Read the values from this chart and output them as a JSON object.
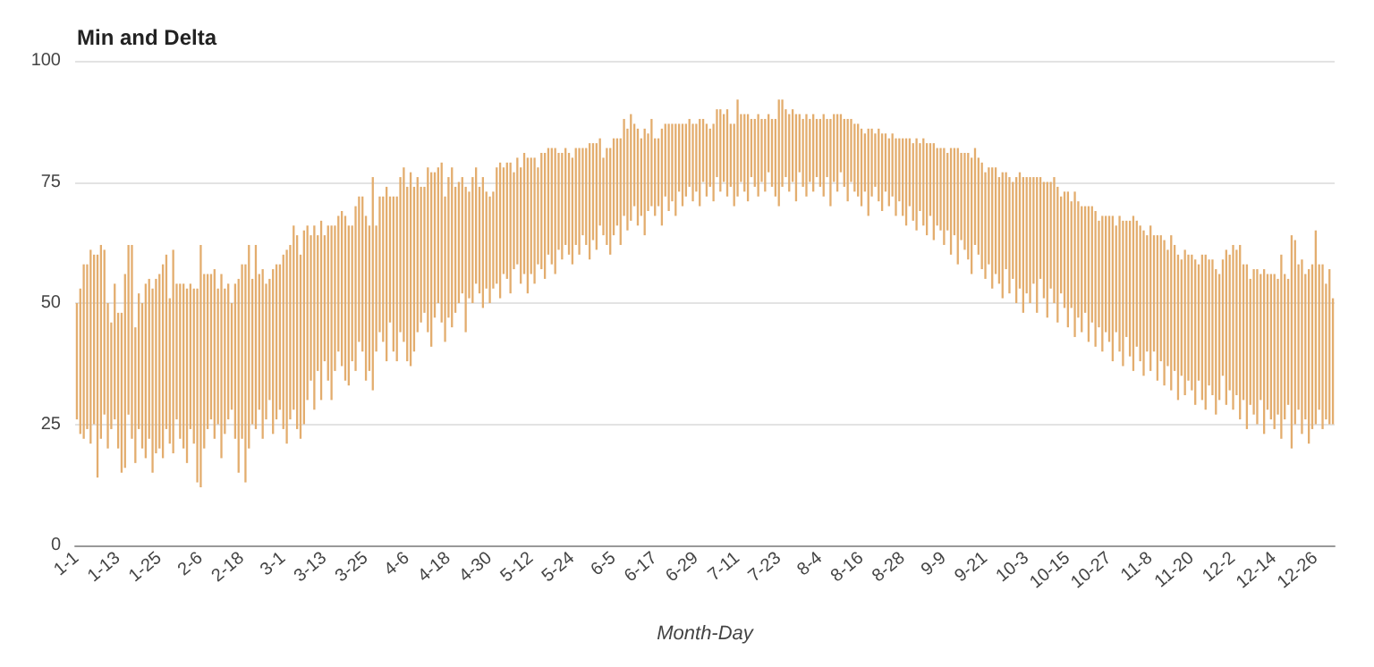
{
  "chart_data": {
    "type": "bar",
    "title": "Min and Delta",
    "xlabel": "Month-Day",
    "color": "#e3ad6e",
    "ylim": [
      0,
      100
    ],
    "yticks": [
      0,
      25,
      50,
      75,
      100
    ],
    "grid": "y",
    "categories": [
      "1-1",
      null,
      null,
      null,
      null,
      null,
      null,
      null,
      null,
      null,
      null,
      null,
      "1-13",
      null,
      null,
      null,
      null,
      null,
      null,
      null,
      null,
      null,
      null,
      null,
      "1-25",
      null,
      null,
      null,
      null,
      null,
      null,
      null,
      null,
      null,
      null,
      null,
      "2-6",
      null,
      null,
      null,
      null,
      null,
      null,
      null,
      null,
      null,
      null,
      null,
      "2-18",
      null,
      null,
      null,
      null,
      null,
      null,
      null,
      null,
      null,
      null,
      null,
      "3-1",
      null,
      null,
      null,
      null,
      null,
      null,
      null,
      null,
      null,
      null,
      null,
      "3-13",
      null,
      null,
      null,
      null,
      null,
      null,
      null,
      null,
      null,
      null,
      null,
      "3-25",
      null,
      null,
      null,
      null,
      null,
      null,
      null,
      null,
      null,
      null,
      null,
      "4-6",
      null,
      null,
      null,
      null,
      null,
      null,
      null,
      null,
      null,
      null,
      null,
      "4-18",
      null,
      null,
      null,
      null,
      null,
      null,
      null,
      null,
      null,
      null,
      null,
      "4-30",
      null,
      null,
      null,
      null,
      null,
      null,
      null,
      null,
      null,
      null,
      null,
      "5-12",
      null,
      null,
      null,
      null,
      null,
      null,
      null,
      null,
      null,
      null,
      null,
      "5-24",
      null,
      null,
      null,
      null,
      null,
      null,
      null,
      null,
      null,
      null,
      null,
      "6-5",
      null,
      null,
      null,
      null,
      null,
      null,
      null,
      null,
      null,
      null,
      null,
      "6-17",
      null,
      null,
      null,
      null,
      null,
      null,
      null,
      null,
      null,
      null,
      null,
      "6-29",
      null,
      null,
      null,
      null,
      null,
      null,
      null,
      null,
      null,
      null,
      null,
      "7-11",
      null,
      null,
      null,
      null,
      null,
      null,
      null,
      null,
      null,
      null,
      null,
      "7-23",
      null,
      null,
      null,
      null,
      null,
      null,
      null,
      null,
      null,
      null,
      null,
      "8-4",
      null,
      null,
      null,
      null,
      null,
      null,
      null,
      null,
      null,
      null,
      null,
      "8-16",
      null,
      null,
      null,
      null,
      null,
      null,
      null,
      null,
      null,
      null,
      null,
      "8-28",
      null,
      null,
      null,
      null,
      null,
      null,
      null,
      null,
      null,
      null,
      null,
      "9-9",
      null,
      null,
      null,
      null,
      null,
      null,
      null,
      null,
      null,
      null,
      null,
      "9-21",
      null,
      null,
      null,
      null,
      null,
      null,
      null,
      null,
      null,
      null,
      null,
      "10-3",
      null,
      null,
      null,
      null,
      null,
      null,
      null,
      null,
      null,
      null,
      null,
      "10-15",
      null,
      null,
      null,
      null,
      null,
      null,
      null,
      null,
      null,
      null,
      null,
      "10-27",
      null,
      null,
      null,
      null,
      null,
      null,
      null,
      null,
      null,
      null,
      null,
      "11-8",
      null,
      null,
      null,
      null,
      null,
      null,
      null,
      null,
      null,
      null,
      null,
      "11-20",
      null,
      null,
      null,
      null,
      null,
      null,
      null,
      null,
      null,
      null,
      null,
      "12-2",
      null,
      null,
      null,
      null,
      null,
      null,
      null,
      null,
      null,
      null,
      null,
      "12-14",
      null,
      null,
      null,
      null,
      null,
      null,
      null,
      null,
      null,
      null,
      null,
      "12-26",
      null,
      null,
      null,
      null,
      null
    ],
    "base": [
      26,
      23,
      22,
      24,
      21,
      25,
      14,
      22,
      27,
      20,
      24,
      26,
      20,
      15,
      16,
      27,
      22,
      17,
      24,
      20,
      18,
      22,
      15,
      19,
      20,
      18,
      24,
      21,
      19,
      26,
      22,
      20,
      17,
      24,
      21,
      13,
      12,
      20,
      24,
      26,
      22,
      25,
      18,
      23,
      26,
      28,
      22,
      15,
      22,
      13,
      20,
      25,
      24,
      28,
      22,
      26,
      30,
      23,
      26,
      28,
      24,
      21,
      26,
      28,
      24,
      22,
      25,
      30,
      34,
      28,
      36,
      30,
      38,
      34,
      30,
      36,
      40,
      37,
      34,
      33,
      38,
      36,
      42,
      40,
      34,
      36,
      32,
      40,
      44,
      42,
      38,
      46,
      40,
      38,
      44,
      42,
      38,
      37,
      40,
      44,
      46,
      48,
      44,
      41,
      47,
      50,
      46,
      42,
      47,
      45,
      48,
      50,
      52,
      44,
      51,
      50,
      54,
      52,
      49,
      53,
      50,
      53,
      54,
      51,
      56,
      55,
      52,
      57,
      58,
      54,
      56,
      52,
      56,
      54,
      58,
      57,
      55,
      60,
      58,
      56,
      61,
      59,
      62,
      60,
      58,
      62,
      60,
      64,
      62,
      59,
      63,
      61,
      66,
      64,
      62,
      60,
      64,
      66,
      62,
      68,
      65,
      67,
      70,
      66,
      68,
      64,
      69,
      70,
      68,
      70,
      66,
      72,
      69,
      71,
      68,
      73,
      70,
      72,
      74,
      71,
      73,
      70,
      75,
      72,
      74,
      71,
      76,
      73,
      75,
      72,
      74,
      70,
      72,
      75,
      73,
      71,
      76,
      74,
      72,
      75,
      73,
      77,
      74,
      72,
      70,
      74,
      76,
      73,
      75,
      71,
      77,
      74,
      72,
      75,
      73,
      76,
      74,
      72,
      76,
      70,
      75,
      73,
      77,
      74,
      71,
      75,
      73,
      72,
      70,
      73,
      68,
      72,
      74,
      71,
      69,
      73,
      70,
      72,
      68,
      71,
      68,
      66,
      70,
      67,
      65,
      69,
      66,
      64,
      68,
      63,
      66,
      65,
      62,
      65,
      60,
      64,
      58,
      63,
      61,
      59,
      56,
      62,
      60,
      57,
      55,
      58,
      53,
      56,
      54,
      51,
      57,
      52,
      55,
      50,
      53,
      48,
      52,
      50,
      54,
      48,
      55,
      51,
      47,
      53,
      50,
      46,
      52,
      49,
      45,
      49,
      43,
      47,
      44,
      48,
      42,
      46,
      41,
      45,
      40,
      44,
      42,
      38,
      44,
      40,
      37,
      43,
      39,
      36,
      41,
      38,
      35,
      40,
      36,
      40,
      34,
      38,
      33,
      37,
      32,
      36,
      30,
      35,
      31,
      34,
      32,
      29,
      34,
      30,
      28,
      33,
      31,
      27,
      30,
      35,
      29,
      32,
      28,
      31,
      26,
      30,
      24,
      29,
      27,
      25,
      30,
      23,
      28,
      26,
      24,
      27,
      22,
      26,
      29,
      20,
      25,
      28,
      23,
      26,
      21,
      24,
      25,
      28,
      24,
      26,
      25,
      25
    ],
    "values": [
      24,
      30,
      36,
      34,
      40,
      35,
      46,
      40,
      34,
      30,
      22,
      28,
      28,
      33,
      40,
      35,
      40,
      28,
      28,
      30,
      36,
      33,
      38,
      36,
      36,
      40,
      36,
      30,
      42,
      28,
      32,
      34,
      36,
      30,
      32,
      40,
      50,
      36,
      32,
      30,
      35,
      28,
      38,
      30,
      28,
      22,
      32,
      40,
      36,
      45,
      42,
      30,
      38,
      28,
      35,
      28,
      25,
      34,
      32,
      30,
      36,
      40,
      36,
      38,
      40,
      38,
      40,
      36,
      30,
      38,
      28,
      37,
      26,
      32,
      36,
      30,
      28,
      32,
      34,
      33,
      28,
      34,
      30,
      32,
      34,
      30,
      44,
      26,
      28,
      30,
      36,
      26,
      32,
      34,
      32,
      36,
      36,
      40,
      34,
      32,
      28,
      26,
      34,
      36,
      30,
      28,
      33,
      30,
      29,
      33,
      26,
      25,
      24,
      30,
      22,
      26,
      24,
      22,
      27,
      20,
      22,
      20,
      24,
      28,
      22,
      24,
      27,
      20,
      22,
      24,
      25,
      28,
      24,
      26,
      20,
      24,
      26,
      22,
      24,
      26,
      20,
      22,
      20,
      21,
      22,
      20,
      22,
      18,
      20,
      24,
      20,
      22,
      18,
      16,
      20,
      22,
      20,
      18,
      22,
      20,
      21,
      22,
      17,
      20,
      16,
      22,
      16,
      18,
      16,
      14,
      20,
      15,
      18,
      16,
      19,
      14,
      17,
      15,
      14,
      16,
      14,
      18,
      13,
      15,
      12,
      16,
      14,
      17,
      14,
      18,
      13,
      17,
      20,
      14,
      16,
      18,
      12,
      14,
      17,
      13,
      15,
      12,
      14,
      16,
      22,
      18,
      14,
      16,
      15,
      18,
      12,
      14,
      17,
      13,
      16,
      12,
      14,
      17,
      12,
      18,
      14,
      16,
      12,
      14,
      17,
      13,
      14,
      15,
      16,
      12,
      18,
      14,
      11,
      15,
      16,
      12,
      14,
      13,
      16,
      13,
      16,
      18,
      14,
      16,
      19,
      14,
      18,
      19,
      15,
      20,
      16,
      17,
      20,
      16,
      22,
      18,
      24,
      18,
      20,
      22,
      24,
      20,
      20,
      22,
      22,
      20,
      25,
      22,
      22,
      26,
      20,
      24,
      20,
      26,
      24,
      28,
      24,
      26,
      22,
      28,
      21,
      24,
      28,
      22,
      26,
      28,
      20,
      24,
      28,
      22,
      30,
      24,
      26,
      22,
      28,
      24,
      28,
      22,
      28,
      24,
      26,
      30,
      22,
      28,
      30,
      24,
      28,
      32,
      26,
      28,
      30,
      24,
      30,
      24,
      30,
      26,
      30,
      24,
      32,
      26,
      30,
      24,
      30,
      26,
      28,
      30,
      24,
      30,
      32,
      26,
      28,
      30,
      26,
      24,
      32,
      28,
      34,
      30,
      36,
      28,
      34,
      26,
      30,
      32,
      26,
      34,
      28,
      30,
      32,
      28,
      38,
      30,
      26,
      44,
      38,
      30,
      36,
      30,
      36,
      34,
      40,
      30,
      34,
      28,
      32,
      26
    ]
  }
}
